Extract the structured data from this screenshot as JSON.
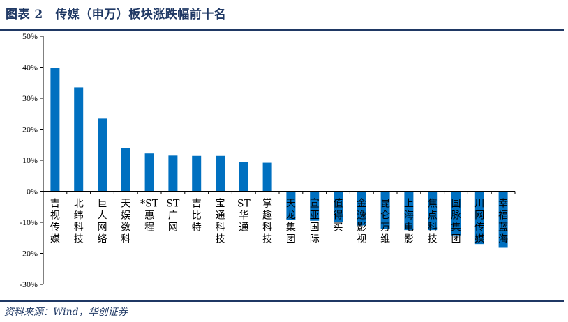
{
  "header": {
    "title": "图表 2　传媒（申万）板块涨跌幅前十名"
  },
  "footer": {
    "source": "资料来源：Wind，华创证券"
  },
  "colors": {
    "bar": "#0070c0",
    "axis": "#000000",
    "rule": "#1f3864"
  },
  "chart_data": {
    "type": "bar",
    "title": "",
    "xlabel": "",
    "ylabel": "",
    "ylim": [
      -30,
      50
    ],
    "yticks": [
      -30,
      -20,
      -10,
      0,
      10,
      20,
      30,
      40,
      50
    ],
    "ytick_labels": [
      "-30%",
      "-20%",
      "-10%",
      "0%",
      "10%",
      "20%",
      "30%",
      "40%",
      "50%"
    ],
    "categories": [
      "吉视传媒",
      "北纬科技",
      "巨人网络",
      "天娱数科",
      "*ST惠程",
      "ST广网",
      "吉比特",
      "宝通科技",
      "ST华通",
      "掌趣科技",
      "天龙集团",
      "宣亚国际",
      "值得买",
      "金逸影视",
      "昆仑万维",
      "上海电影",
      "焦点科技",
      "国脉集团",
      "川网传媒",
      "幸福蓝海"
    ],
    "values": [
      39.8,
      33.5,
      23.4,
      14.0,
      12.2,
      11.5,
      11.4,
      11.4,
      9.5,
      9.2,
      -9.2,
      -9.5,
      -9.8,
      -11.0,
      -12.2,
      -12.5,
      -12.5,
      -14.2,
      -17.0,
      -18.2
    ],
    "grid": false,
    "legend": "none"
  }
}
